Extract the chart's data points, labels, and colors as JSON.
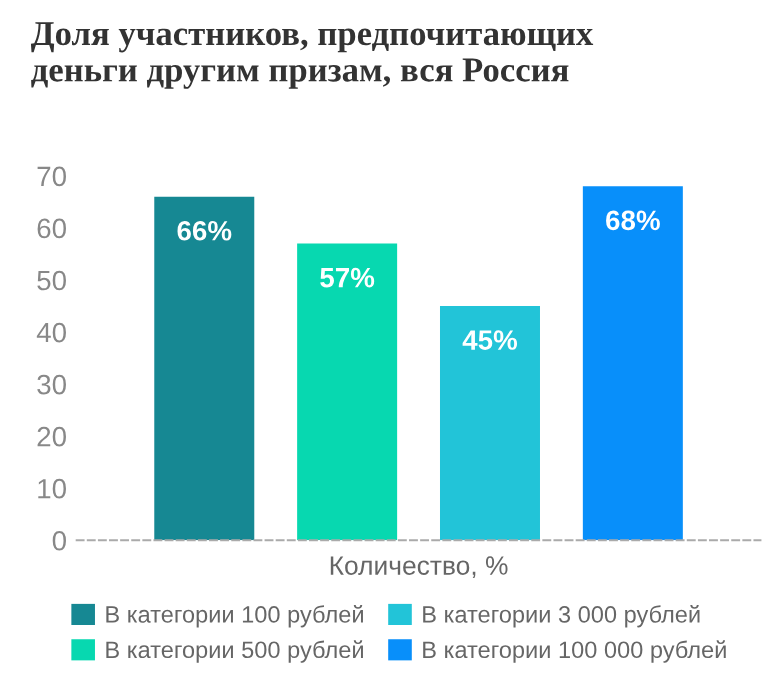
{
  "chart_data": {
    "type": "bar",
    "title": "Доля участников, предпочитающих\nденьги другим призам, вся Россия",
    "xlabel": "Количество, %",
    "categories": [
      null
    ],
    "series": [
      {
        "name": "В категории 100 рублей",
        "color": "#168893",
        "values": [
          66
        ],
        "value_labels": [
          "66%"
        ]
      },
      {
        "name": "В категории 500 рублей",
        "color": "#07d8b0",
        "values": [
          57
        ],
        "value_labels": [
          "57%"
        ]
      },
      {
        "name": "В категории 3 000 рублей",
        "color": "#22c4d8",
        "values": [
          45
        ],
        "value_labels": [
          "45%"
        ]
      },
      {
        "name": "В категории 100 000 рублей",
        "color": "#088ffa",
        "values": [
          68
        ],
        "value_labels": [
          "68%"
        ]
      }
    ],
    "ylim": [
      0,
      70
    ],
    "yticks": [
      0,
      10,
      20,
      30,
      40,
      50,
      60,
      70
    ],
    "grid": false,
    "legend": "bottom"
  }
}
